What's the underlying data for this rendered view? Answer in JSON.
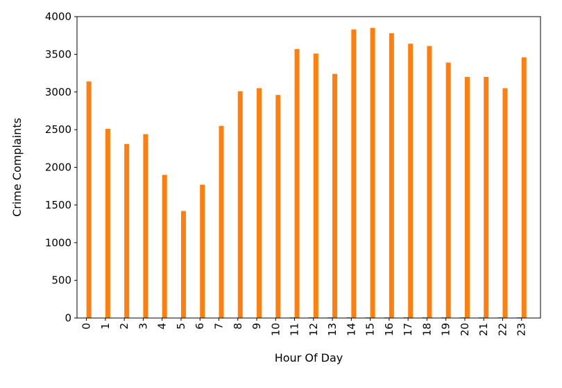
{
  "chart_data": {
    "type": "bar",
    "xlabel": "Hour Of Day",
    "ylabel": "Crime Complaints",
    "ylim": [
      0,
      4000
    ],
    "yticks": [
      0,
      500,
      1000,
      1500,
      2000,
      2500,
      3000,
      3500,
      4000
    ],
    "categories": [
      "0",
      "1",
      "2",
      "3",
      "4",
      "5",
      "6",
      "7",
      "8",
      "9",
      "10",
      "11",
      "12",
      "13",
      "14",
      "15",
      "16",
      "17",
      "18",
      "19",
      "20",
      "21",
      "22",
      "23"
    ],
    "series": [
      {
        "color": "#1f77b4",
        "values": [
          3,
          2,
          2,
          2,
          2,
          2,
          2,
          3,
          4,
          4,
          4,
          8,
          8,
          8,
          8,
          8,
          8,
          8,
          8,
          8,
          8,
          8,
          8,
          8
        ]
      },
      {
        "color": "#ff7f0e",
        "values": [
          3140,
          2510,
          2310,
          2440,
          1900,
          1420,
          1770,
          2550,
          3010,
          3050,
          2960,
          3570,
          3510,
          3240,
          3830,
          3850,
          3780,
          3640,
          3610,
          3390,
          3200,
          3200,
          3050,
          3460
        ]
      }
    ],
    "grid": false,
    "legend": "none"
  }
}
